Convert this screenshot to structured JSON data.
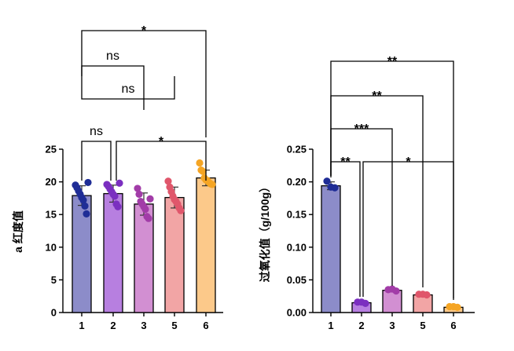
{
  "chart_data": [
    {
      "type": "bar",
      "ylabel": "a 红度值",
      "categories": [
        "1",
        "2",
        "3",
        "5",
        "6"
      ],
      "ylim": [
        0,
        25
      ],
      "yticks": [
        0,
        5,
        10,
        15,
        20,
        25
      ],
      "values": [
        17.9,
        18.2,
        16.6,
        17.6,
        20.6
      ],
      "errors": [
        1.5,
        1.3,
        1.7,
        1.6,
        1.2
      ],
      "colors": [
        "#8c8cc9",
        "#b77fe0",
        "#d28fd2",
        "#f2a5a5",
        "#fcc98a"
      ],
      "point_colors": [
        "#1f2d96",
        "#7b2fc0",
        "#a23ca8",
        "#e0566b",
        "#f5a524"
      ],
      "points": [
        [
          19.5,
          19.1,
          18.6,
          18.1,
          17.6,
          17.2,
          16.3,
          15.1,
          19.9
        ],
        [
          19.6,
          19.3,
          18.9,
          18.5,
          18.1,
          17.8,
          16.6,
          16.2,
          19.8
        ],
        [
          19.0,
          18.1,
          17.0,
          16.6,
          16.2,
          15.8,
          14.7,
          14.4,
          17.4
        ],
        [
          20.1,
          19.2,
          18.5,
          17.8,
          17.3,
          17.0,
          16.6,
          16.0,
          15.6
        ],
        [
          22.9,
          21.8,
          21.6,
          20.6,
          20.3,
          20.2,
          19.9,
          19.7,
          19.6
        ]
      ],
      "comparisons": [
        {
          "from": "1",
          "to": "2",
          "label": "ns"
        },
        {
          "from": "2",
          "to": "6",
          "label": "*"
        },
        {
          "from": "1",
          "to": "5",
          "label": "ns"
        },
        {
          "from": "1",
          "to": "3",
          "label": "ns"
        },
        {
          "from": "1",
          "to": "6",
          "label": "*"
        }
      ]
    },
    {
      "type": "bar",
      "ylabel": "过氧化值（g/100g）",
      "categories": [
        "1",
        "2",
        "3",
        "5",
        "6"
      ],
      "ylim": [
        0,
        0.25
      ],
      "yticks": [
        "0.00",
        "0.05",
        "0.10",
        "0.15",
        "0.20",
        "0.25"
      ],
      "values": [
        0.194,
        0.015,
        0.034,
        0.027,
        0.008
      ],
      "errors": [
        0.006,
        0.002,
        0.002,
        0.001,
        0.001
      ],
      "colors": [
        "#8c8cc9",
        "#b77fe0",
        "#d28fd2",
        "#f2a5a5",
        "#fcc98a"
      ],
      "point_colors": [
        "#1f2d96",
        "#7b2fc0",
        "#a23ca8",
        "#e0566b",
        "#f5a524"
      ],
      "points": [
        [
          0.201,
          0.192,
          0.191
        ],
        [
          0.016,
          0.016,
          0.014
        ],
        [
          0.035,
          0.036,
          0.033
        ],
        [
          0.028,
          0.028,
          0.027
        ],
        [
          0.009,
          0.009,
          0.008
        ]
      ],
      "comparisons": [
        {
          "from": "1",
          "to": "2",
          "label": "**"
        },
        {
          "from": "2",
          "to": "6",
          "label": "*"
        },
        {
          "from": "1",
          "to": "3",
          "label": "***"
        },
        {
          "from": "1",
          "to": "5",
          "label": "**"
        },
        {
          "from": "1",
          "to": "6",
          "label": "**"
        }
      ]
    }
  ]
}
